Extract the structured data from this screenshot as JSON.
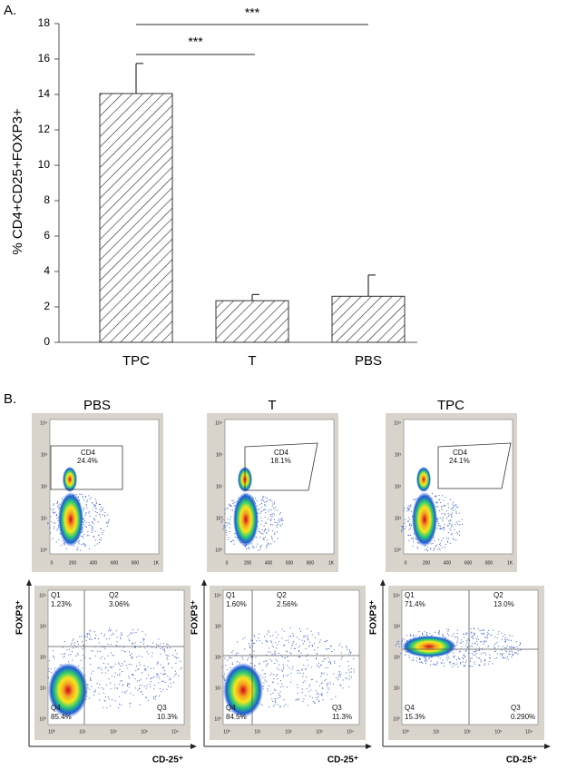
{
  "panel_labels": [
    "A.",
    "B."
  ],
  "chart_data": {
    "type": "bar",
    "y_label": "% CD4+CD25+FOXP3+",
    "categories": [
      "TPC",
      "T",
      "PBS"
    ],
    "values": [
      14.05,
      2.35,
      2.6
    ],
    "errors": [
      1.7,
      0.35,
      1.2
    ],
    "ylim": [
      0,
      18
    ],
    "yticks": [
      0,
      2,
      4,
      6,
      8,
      10,
      12,
      14,
      16,
      18
    ],
    "grid": false,
    "annotations": [
      "***",
      "***"
    ]
  },
  "flow_axes": {
    "x_label": "CD-25⁺",
    "y_label": "FOXP3⁺",
    "linear_ticks": [
      "0",
      "200",
      "400",
      "600",
      "800",
      "1K"
    ],
    "log_ticks": [
      "10⁰",
      "10¹",
      "10²",
      "10³",
      "10⁴"
    ]
  },
  "flow_panels": [
    {
      "title": "PBS",
      "gate_label": "CD4",
      "gate_percent": "24.4%",
      "quadrants": [
        {
          "name": "Q1",
          "percent": "1.23%"
        },
        {
          "name": "Q2",
          "percent": "3.06%"
        },
        {
          "name": "Q3",
          "percent": "10.3%"
        },
        {
          "name": "Q4",
          "percent": "85.4%"
        }
      ]
    },
    {
      "title": "T",
      "gate_label": "CD4",
      "gate_percent": "18.1%",
      "quadrants": [
        {
          "name": "Q1",
          "percent": "1.60%"
        },
        {
          "name": "Q2",
          "percent": "2.56%"
        },
        {
          "name": "Q3",
          "percent": "11.3%"
        },
        {
          "name": "Q4",
          "percent": "84.5%"
        }
      ]
    },
    {
      "title": "TPC",
      "gate_label": "CD4",
      "gate_percent": "24.1%",
      "quadrants": [
        {
          "name": "Q1",
          "percent": "71.4%"
        },
        {
          "name": "Q2",
          "percent": "13.0%"
        },
        {
          "name": "Q3",
          "percent": "0.290%"
        },
        {
          "name": "Q4",
          "percent": "15.3%"
        }
      ]
    }
  ]
}
